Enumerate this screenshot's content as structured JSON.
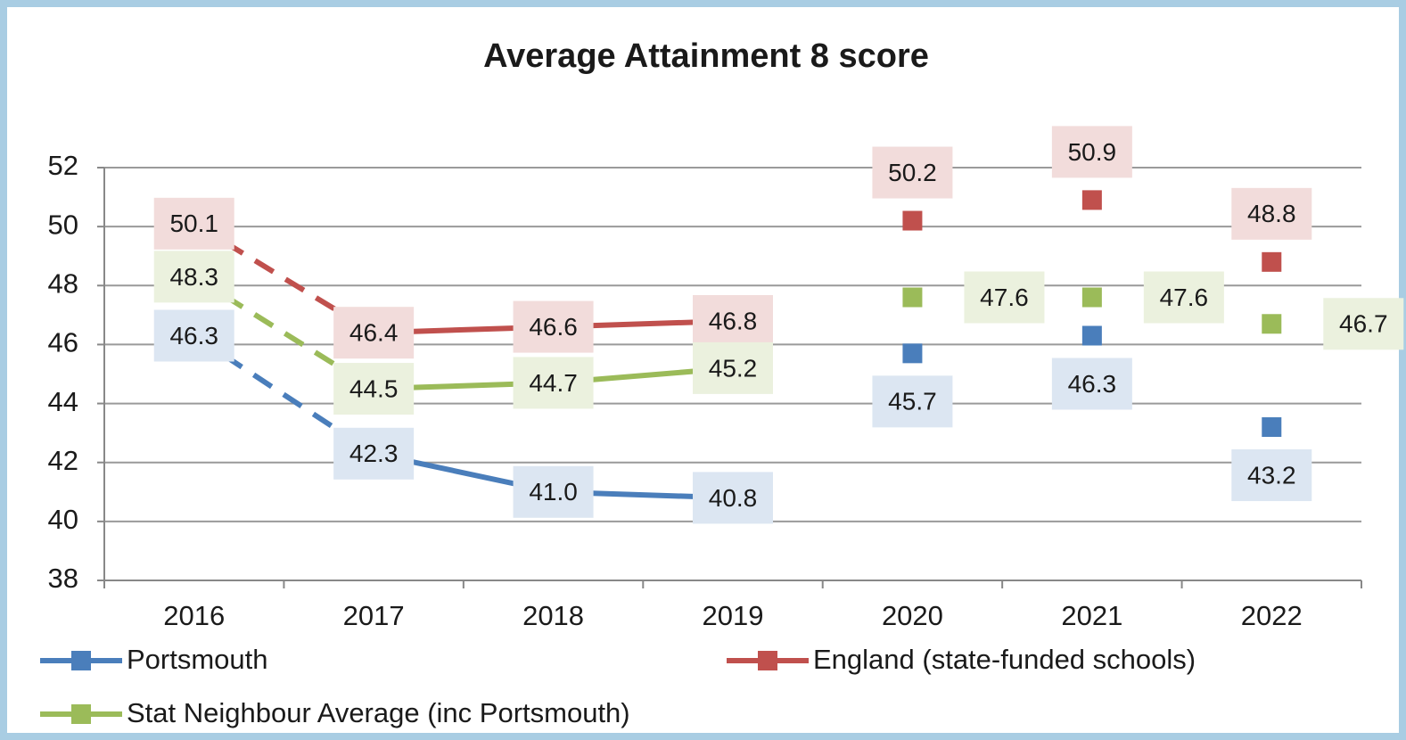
{
  "chart_data": {
    "type": "line",
    "title": "Average Attainment 8 score",
    "categories": [
      "2016",
      "2017",
      "2018",
      "2019",
      "2020",
      "2021",
      "2022"
    ],
    "series": [
      {
        "name": "Portsmouth",
        "color": "#4a7ebb",
        "label_color": "#dce6f2",
        "values": [
          46.3,
          42.3,
          41.0,
          40.8,
          45.7,
          46.3,
          43.2
        ],
        "value_labels": [
          "46.3",
          "42.3",
          "41.0",
          "40.8",
          "45.7",
          "46.3",
          "43.2"
        ]
      },
      {
        "name": "England (state-funded schools)",
        "color": "#c0504d",
        "label_color": "#f2dcdb",
        "values": [
          50.1,
          46.4,
          46.6,
          46.8,
          50.2,
          50.9,
          48.8
        ],
        "value_labels": [
          "50.1",
          "46.4",
          "46.6",
          "46.8",
          "50.2",
          "50.9",
          "48.8"
        ]
      },
      {
        "name": "Stat Neighbour Average (inc Portsmouth)",
        "color": "#9bbb59",
        "label_color": "#ebf1de",
        "values": [
          48.3,
          44.5,
          44.7,
          45.2,
          47.6,
          47.6,
          46.7
        ],
        "value_labels": [
          "48.3",
          "44.5",
          "44.7",
          "45.2",
          "47.6",
          "47.6",
          "46.7"
        ]
      }
    ],
    "segments": [
      {
        "range": [
          0,
          1
        ],
        "dashed": true
      },
      {
        "range": [
          1,
          3
        ],
        "dashed": false
      }
    ],
    "ylim": [
      38,
      52
    ],
    "yticks": [
      38,
      40,
      42,
      44,
      46,
      48,
      50,
      52
    ],
    "grid": true,
    "legend": "bottom"
  }
}
